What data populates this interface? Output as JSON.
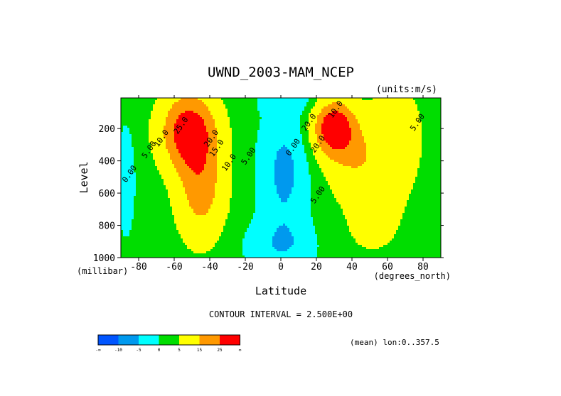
{
  "chart_data": {
    "type": "heatmap",
    "title": "UWND_2003-MAM_NCEP",
    "units": "(units:m/s)",
    "xlabel": "Latitude",
    "ylabel": "Level",
    "x_unit": "(degrees_north)",
    "y_unit": "(millibar)",
    "xlim": [
      -90,
      90
    ],
    "ylim": [
      1000,
      10
    ],
    "x_ticks": [
      -80,
      -60,
      -40,
      -20,
      0,
      20,
      40,
      60,
      80
    ],
    "x_tick_labels": [
      "-80",
      "-60",
      "-40",
      "-20",
      "0",
      "20",
      "40",
      "60",
      "80"
    ],
    "y_ticks": [
      200,
      400,
      600,
      800,
      1000
    ],
    "y_tick_labels": [
      "200",
      "400",
      "600",
      "800",
      "1000"
    ],
    "contour_interval_text": "CONTOUR INTERVAL = 2.500E+00",
    "mean_text": "(mean) lon:0..357.5",
    "colorbar": {
      "levels": [
        -10,
        -5,
        0,
        5,
        15,
        25
      ],
      "labels": [
        "-∞",
        "-10",
        "-5",
        "0",
        "5",
        "15",
        "25",
        "∞"
      ],
      "colors": [
        "#0055ff",
        "#0099ee",
        "#00ffff",
        "#00dd00",
        "#ffff00",
        "#ff9900",
        "#ff0000"
      ]
    },
    "features": [
      {
        "kind": "jet",
        "lat": -52,
        "level": 200,
        "peak": 27.5
      },
      {
        "kind": "jet",
        "lat": 30,
        "level": 200,
        "peak": 30.0
      },
      {
        "kind": "easterlies",
        "lat": 0,
        "level": 500,
        "min": -7.5
      }
    ],
    "contour_labels": [
      {
        "text": "25.0",
        "lat": -55,
        "level": 190
      },
      {
        "text": "20.0",
        "lat": -38,
        "level": 270
      },
      {
        "text": "15.0",
        "lat": -35,
        "level": 330
      },
      {
        "text": "10.0",
        "lat": -28,
        "level": 420
      },
      {
        "text": "5.00",
        "lat": -17,
        "level": 380
      },
      {
        "text": "10.0",
        "lat": -66,
        "level": 270
      },
      {
        "text": "5.00",
        "lat": -73,
        "level": 340
      },
      {
        "text": "0.00",
        "lat": -84,
        "level": 490
      },
      {
        "text": "10.0",
        "lat": 32,
        "level": 90
      },
      {
        "text": "20.0",
        "lat": 17,
        "level": 170
      },
      {
        "text": "20.0",
        "lat": 22,
        "level": 305
      },
      {
        "text": "0.00",
        "lat": 8,
        "level": 325
      },
      {
        "text": "5.00",
        "lat": 22,
        "level": 620
      },
      {
        "text": "5.00",
        "lat": 78,
        "level": 170
      }
    ]
  }
}
